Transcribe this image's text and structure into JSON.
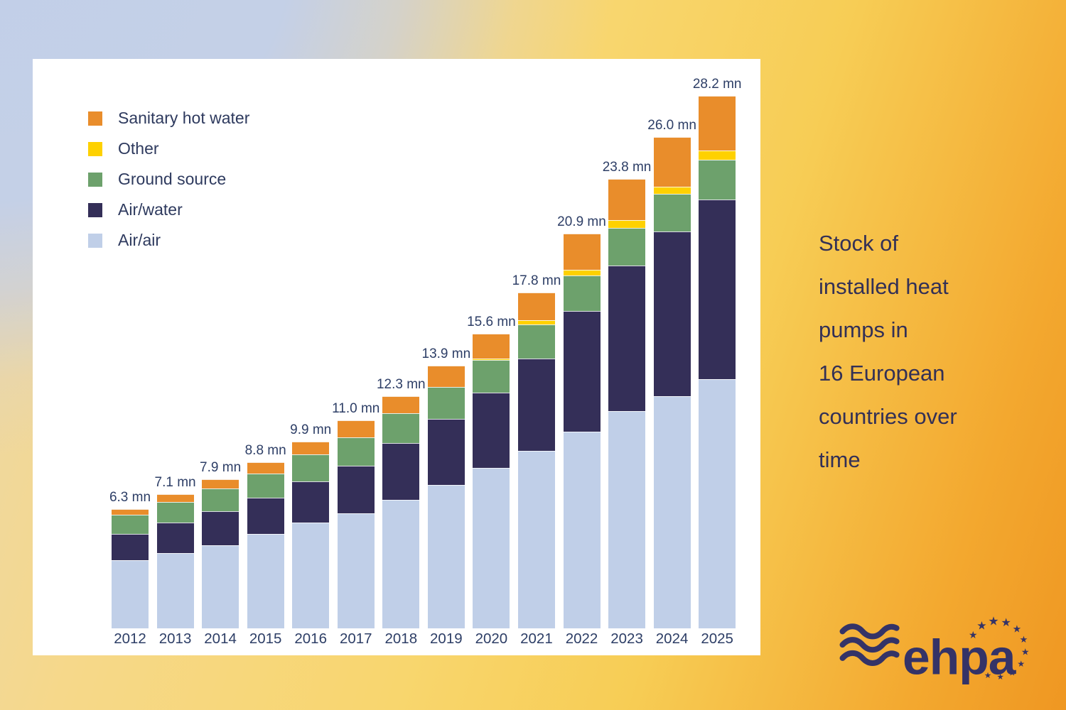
{
  "colors": {
    "sanitary_hot_water": "#E98D2B",
    "other": "#FED100",
    "ground_source": "#6DA16C",
    "air_water": "#342F58",
    "air_air": "#C0CFE8",
    "chart_text": "#2d3e66",
    "title_text": "#333056",
    "logo_navy": "#343367",
    "panel_background": "#ffffff",
    "bg_corner_top_left": "#c2cfe8",
    "bg_corner_top_right": "#f8d76f",
    "bg_corner_bottom_left": "#f5d98f",
    "bg_corner_bottom_right": "#f29a25"
  },
  "legend": {
    "items": [
      {
        "label": "Sanitary hot water",
        "color": "#E98D2B"
      },
      {
        "label": "Other",
        "color": "#FED100"
      },
      {
        "label": "Ground source",
        "color": "#6DA16C"
      },
      {
        "label": "Air/water",
        "color": "#342F58"
      },
      {
        "label": "Air/air",
        "color": "#C0CFE8"
      }
    ]
  },
  "chart_data": {
    "type": "bar",
    "subtype": "stacked-vertical",
    "title": "Stock of installed heat pumps in 16 European countries over time",
    "unit": "mn (millions of units)",
    "xlabel": "",
    "ylabel": "",
    "grid": false,
    "legend_position": "top-left inside plot",
    "ylim": [
      0,
      30
    ],
    "categories": [
      "2012",
      "2013",
      "2014",
      "2015",
      "2016",
      "2017",
      "2018",
      "2019",
      "2020",
      "2021",
      "2022",
      "2023",
      "2024",
      "2025"
    ],
    "totals": [
      6.3,
      7.1,
      7.9,
      8.8,
      9.9,
      11.0,
      12.3,
      13.9,
      15.6,
      17.8,
      20.9,
      23.8,
      26.0,
      28.2
    ],
    "total_labels": [
      "6.3 mn",
      "7.1 mn",
      "7.9 mn",
      "8.8 mn",
      "9.9 mn",
      "11.0 mn",
      "12.3 mn",
      "13.9 mn",
      "15.6 mn",
      "17.8 mn",
      "20.9 mn",
      "23.8 mn",
      "26.0 mn",
      "28.2 mn"
    ],
    "series": [
      {
        "name": "Air/air",
        "color": "#C0CFE8",
        "values": [
          3.6,
          4.0,
          4.4,
          5.0,
          5.6,
          6.1,
          6.8,
          7.6,
          8.5,
          9.4,
          10.4,
          11.5,
          12.3,
          13.2
        ]
      },
      {
        "name": "Air/water",
        "color": "#342F58",
        "values": [
          1.4,
          1.6,
          1.8,
          1.9,
          2.2,
          2.5,
          3.0,
          3.5,
          4.0,
          4.9,
          6.4,
          7.7,
          8.7,
          9.5
        ]
      },
      {
        "name": "Ground source",
        "color": "#6DA16C",
        "values": [
          1.0,
          1.1,
          1.2,
          1.3,
          1.4,
          1.5,
          1.6,
          1.7,
          1.7,
          1.8,
          1.9,
          2.0,
          2.0,
          2.1
        ]
      },
      {
        "name": "Other",
        "color": "#FED100",
        "values": [
          0,
          0,
          0,
          0,
          0,
          0,
          0,
          0,
          0.1,
          0.2,
          0.3,
          0.4,
          0.4,
          0.5
        ]
      },
      {
        "name": "Sanitary hot water",
        "color": "#E98D2B",
        "values": [
          0.3,
          0.4,
          0.5,
          0.6,
          0.7,
          0.9,
          0.9,
          1.1,
          1.3,
          1.5,
          1.9,
          2.2,
          2.6,
          2.9
        ]
      }
    ]
  },
  "side_title": {
    "lines": [
      "Stock of",
      "installed heat",
      "pumps in",
      "16 European",
      "countries over",
      "time"
    ]
  },
  "logo": {
    "text": "ehpa"
  },
  "icons": {
    "eu_star": "★",
    "waves": "≋"
  }
}
